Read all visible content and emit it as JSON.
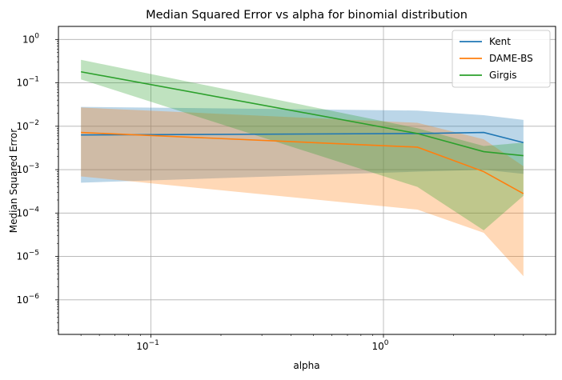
{
  "chart_data": {
    "type": "line",
    "title": "Median Squared Error vs alpha for binomial distribution",
    "xlabel": "alpha",
    "ylabel": "Median Squared Error",
    "xscale": "log",
    "yscale": "log",
    "xlim": [
      0.04,
      5.5
    ],
    "ylim": [
      1.6e-07,
      2.0
    ],
    "grid": true,
    "legend_position": "top-right",
    "x": [
      0.05,
      1.4,
      2.7,
      4.0
    ],
    "x_ticks": [
      {
        "value": 0.1,
        "label": "10",
        "exp": "−1"
      },
      {
        "value": 1,
        "label": "10",
        "exp": "0"
      }
    ],
    "y_ticks": [
      {
        "value": 1e-06,
        "label": "10",
        "exp": "−6"
      },
      {
        "value": 1e-05,
        "label": "10",
        "exp": "−5"
      },
      {
        "value": 0.0001,
        "label": "10",
        "exp": "−4"
      },
      {
        "value": 0.001,
        "label": "10",
        "exp": "−3"
      },
      {
        "value": 0.01,
        "label": "10",
        "exp": "−2"
      },
      {
        "value": 0.1,
        "label": "10",
        "exp": "−1"
      },
      {
        "value": 1,
        "label": "10",
        "exp": "0"
      }
    ],
    "series": [
      {
        "name": "Kent",
        "color": "#1f77b4",
        "fill": "#1f77b4",
        "values": [
          0.0063,
          0.0068,
          0.0072,
          0.0042
        ],
        "lower": [
          0.0005,
          0.0009,
          0.001,
          0.0008
        ],
        "upper": [
          0.028,
          0.023,
          0.018,
          0.014
        ]
      },
      {
        "name": "DAME-BS",
        "color": "#ff7f0e",
        "fill": "#ff7f0e",
        "values": [
          0.0072,
          0.0033,
          0.0009,
          0.00028
        ],
        "lower": [
          0.0007,
          0.00012,
          3.5e-05,
          3.5e-06
        ],
        "upper": [
          0.027,
          0.012,
          0.005,
          0.0012
        ]
      },
      {
        "name": "Girgis",
        "color": "#2ca02c",
        "fill": "#2ca02c",
        "values": [
          0.18,
          0.0068,
          0.0026,
          0.0021
        ],
        "lower": [
          0.12,
          0.0004,
          4e-05,
          0.00025
        ],
        "upper": [
          0.34,
          0.009,
          0.0035,
          0.0042
        ]
      }
    ]
  }
}
